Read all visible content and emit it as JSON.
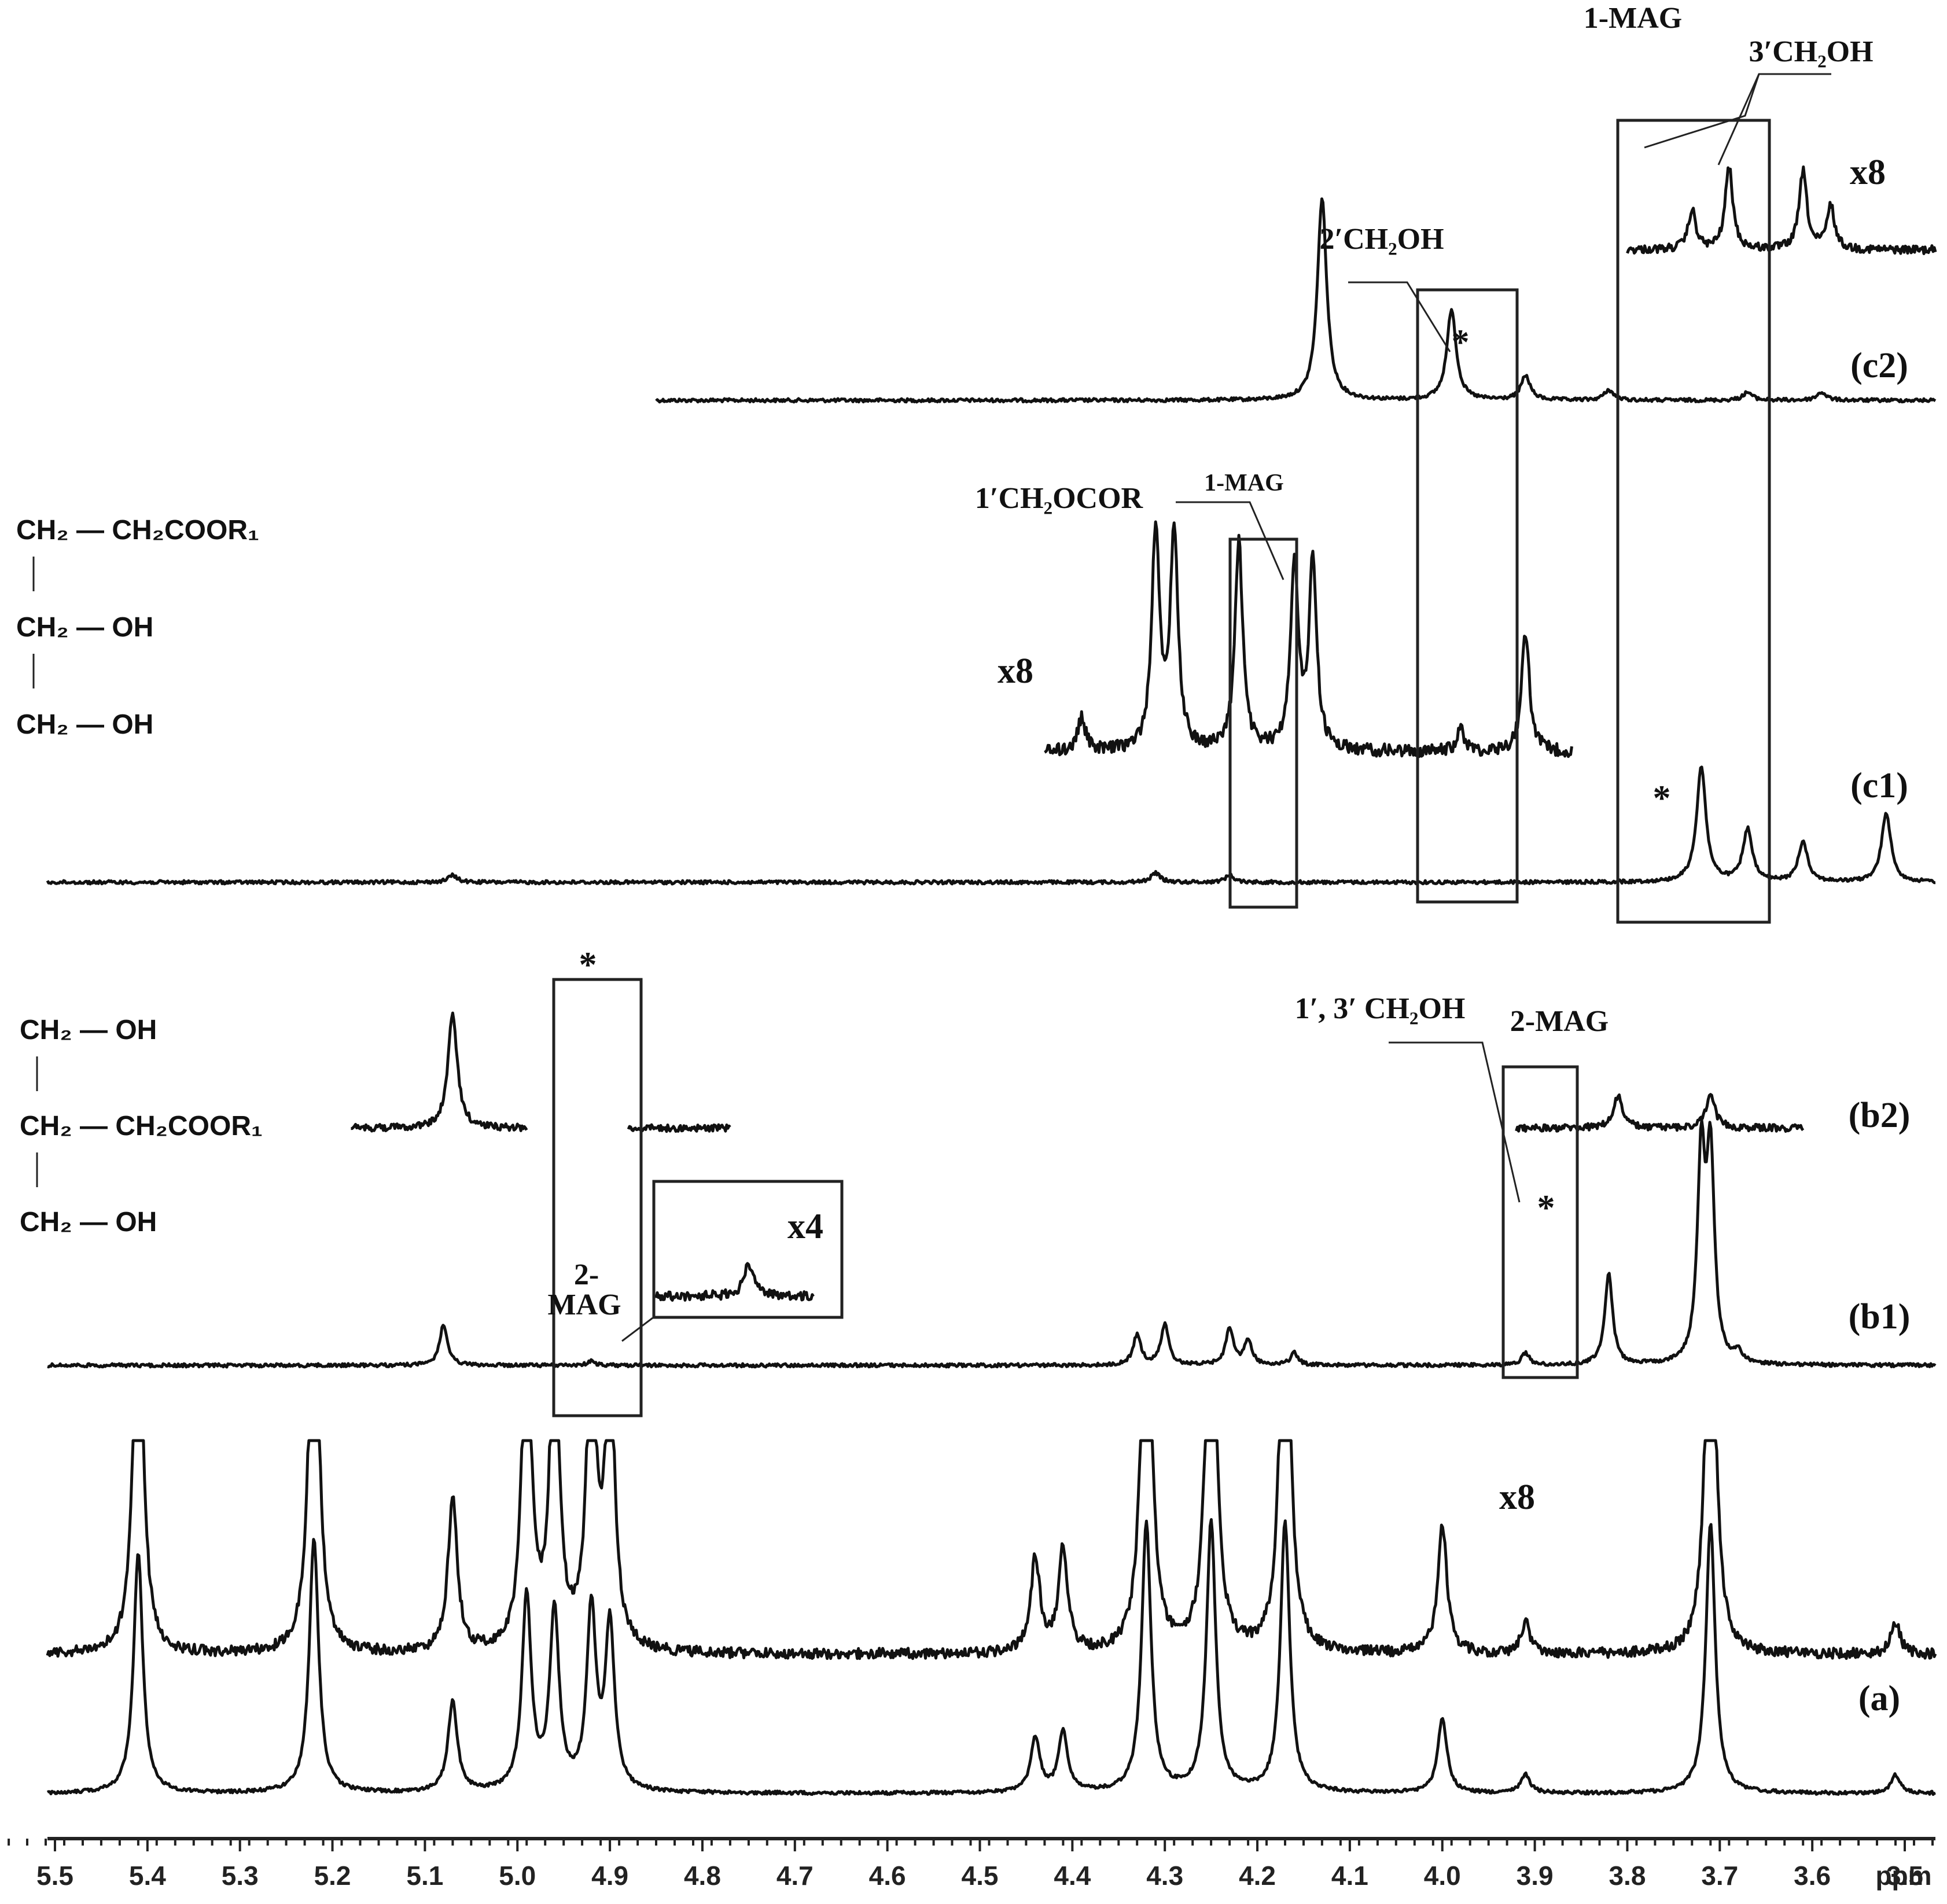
{
  "chart_data": {
    "type": "line",
    "title": "",
    "xlabel": "ppm",
    "ylabel": "",
    "xlim": [
      5.56,
      3.43
    ],
    "x_reversed": true,
    "x_ticks": [
      "5.5",
      "5.4",
      "5.3",
      "5.2",
      "5.1",
      "5.0",
      "4.9",
      "4.8",
      "4.7",
      "4.6",
      "4.5",
      "4.4",
      "4.3",
      "4.2",
      "4.1",
      "4.0",
      "3.9",
      "3.8",
      "3.7",
      "3.6",
      "3.5"
    ],
    "spectra": [
      {
        "label": "(c2)",
        "x_range": [
          4.85,
          3.43
        ],
        "peaks": [
          {
            "ppm": 4.13,
            "rel_height": 1.0
          },
          {
            "ppm": 3.99,
            "rel_height": 0.45
          },
          {
            "ppm": 3.91,
            "rel_height": 0.12
          },
          {
            "ppm": 3.82,
            "rel_height": 0.05
          },
          {
            "ppm": 3.67,
            "rel_height": 0.04
          },
          {
            "ppm": 3.59,
            "rel_height": 0.04
          }
        ],
        "inset": {
          "scale": "x8",
          "x_range": [
            3.8,
            3.43
          ],
          "peaks": [
            {
              "ppm": 3.73,
              "rel_height": 0.45
            },
            {
              "ppm": 3.69,
              "rel_height": 0.95
            },
            {
              "ppm": 3.61,
              "rel_height": 0.9
            },
            {
              "ppm": 3.58,
              "rel_height": 0.5
            }
          ]
        }
      },
      {
        "label": "(c1)",
        "x_range": [
          5.56,
          3.43
        ],
        "peaks": [
          {
            "ppm": 5.07,
            "rel_height": 0.06
          },
          {
            "ppm": 4.31,
            "rel_height": 0.08
          },
          {
            "ppm": 4.23,
            "rel_height": 0.06
          },
          {
            "ppm": 3.72,
            "rel_height": 1.0
          },
          {
            "ppm": 3.67,
            "rel_height": 0.45
          },
          {
            "ppm": 3.61,
            "rel_height": 0.35
          },
          {
            "ppm": 3.52,
            "rel_height": 0.6
          }
        ],
        "inset": {
          "scale": "x8",
          "x_range": [
            4.43,
            3.86
          ],
          "peaks": [
            {
              "ppm": 4.39,
              "rel_height": 0.15
            },
            {
              "ppm": 4.31,
              "rel_height": 1.0
            },
            {
              "ppm": 4.29,
              "rel_height": 1.0
            },
            {
              "ppm": 4.22,
              "rel_height": 0.95
            },
            {
              "ppm": 4.16,
              "rel_height": 0.85
            },
            {
              "ppm": 4.14,
              "rel_height": 0.85
            },
            {
              "ppm": 3.98,
              "rel_height": 0.1
            },
            {
              "ppm": 3.91,
              "rel_height": 0.55
            }
          ]
        }
      },
      {
        "label": "(b2)",
        "segments": [
          [
            5.18,
            4.99
          ],
          [
            4.88,
            4.77
          ],
          [
            3.92,
            3.61
          ]
        ],
        "peaks": [
          {
            "ppm": 5.07,
            "rel_height": 0.9
          },
          {
            "ppm": 3.81,
            "rel_height": 0.25
          },
          {
            "ppm": 3.71,
            "rel_height": 0.25
          }
        ]
      },
      {
        "label": "(b1)",
        "x_range": [
          5.56,
          3.43
        ],
        "peaks": [
          {
            "ppm": 5.08,
            "rel_height": 0.2
          },
          {
            "ppm": 4.92,
            "rel_height": 0.02
          },
          {
            "ppm": 4.33,
            "rel_height": 0.15
          },
          {
            "ppm": 4.3,
            "rel_height": 0.2
          },
          {
            "ppm": 4.23,
            "rel_height": 0.18
          },
          {
            "ppm": 4.21,
            "rel_height": 0.12
          },
          {
            "ppm": 4.16,
            "rel_height": 0.06
          },
          {
            "ppm": 3.91,
            "rel_height": 0.06
          },
          {
            "ppm": 3.82,
            "rel_height": 0.45
          },
          {
            "ppm": 3.72,
            "rel_height": 1.0
          },
          {
            "ppm": 3.71,
            "rel_height": 1.0
          },
          {
            "ppm": 3.68,
            "rel_height": 0.05
          }
        ],
        "inset": {
          "scale": "x4",
          "x_range": [
            4.85,
            4.68
          ],
          "peaks": [
            {
              "ppm": 4.75,
              "rel_height": 1.0
            }
          ]
        }
      },
      {
        "label": "(a)",
        "x_range": [
          5.56,
          3.43
        ],
        "peaks": [
          {
            "ppm": 5.41,
            "rel_height": 0.8
          },
          {
            "ppm": 5.22,
            "rel_height": 0.85
          },
          {
            "ppm": 5.07,
            "rel_height": 0.3
          },
          {
            "ppm": 4.99,
            "rel_height": 0.65
          },
          {
            "ppm": 4.96,
            "rel_height": 0.6
          },
          {
            "ppm": 4.92,
            "rel_height": 0.6
          },
          {
            "ppm": 4.9,
            "rel_height": 0.55
          },
          {
            "ppm": 4.44,
            "rel_height": 0.18
          },
          {
            "ppm": 4.41,
            "rel_height": 0.2
          },
          {
            "ppm": 4.32,
            "rel_height": 0.9
          },
          {
            "ppm": 4.25,
            "rel_height": 0.9
          },
          {
            "ppm": 4.17,
            "rel_height": 0.9
          },
          {
            "ppm": 4.0,
            "rel_height": 0.25
          },
          {
            "ppm": 3.91,
            "rel_height": 0.06
          },
          {
            "ppm": 3.71,
            "rel_height": 0.9
          },
          {
            "ppm": 3.51,
            "rel_height": 0.06
          }
        ],
        "inset": {
          "scale": "x8",
          "x_range": [
            5.56,
            3.43
          ]
        }
      }
    ],
    "annotations": [
      {
        "text": "1-MAG",
        "spectrum": "(c2)"
      },
      {
        "text": "3′CH₂OH",
        "spectrum": "(c2)"
      },
      {
        "text": "2′CH₂OH",
        "spectrum": "(c2)"
      },
      {
        "text": "1′CH₂OCOR",
        "spectrum": "(c1)"
      },
      {
        "text": "1-MAG",
        "spectrum": "(c1)"
      },
      {
        "text": "1′, 3′ CH₂OH",
        "spectrum": "(b2)"
      },
      {
        "text": "2-MAG",
        "spectrum": "(b2)"
      },
      {
        "text": "2-MAG",
        "spectrum": "(b1)"
      },
      {
        "text": "*",
        "marks": "starred signals"
      }
    ],
    "insets_scale_labels": [
      "x8",
      "x8",
      "x4",
      "x8"
    ],
    "structures": [
      {
        "name": "1-MAG",
        "rows": [
          "CH₂ — CH₂COOR₁",
          "CH₂ — OH",
          "CH₂ — OH"
        ]
      },
      {
        "name": "2-MAG",
        "rows": [
          "CH₂ — OH",
          "CH₂ — CH₂COOR₁",
          "CH₂ — OH"
        ]
      }
    ],
    "grid": false,
    "legend": "none"
  }
}
